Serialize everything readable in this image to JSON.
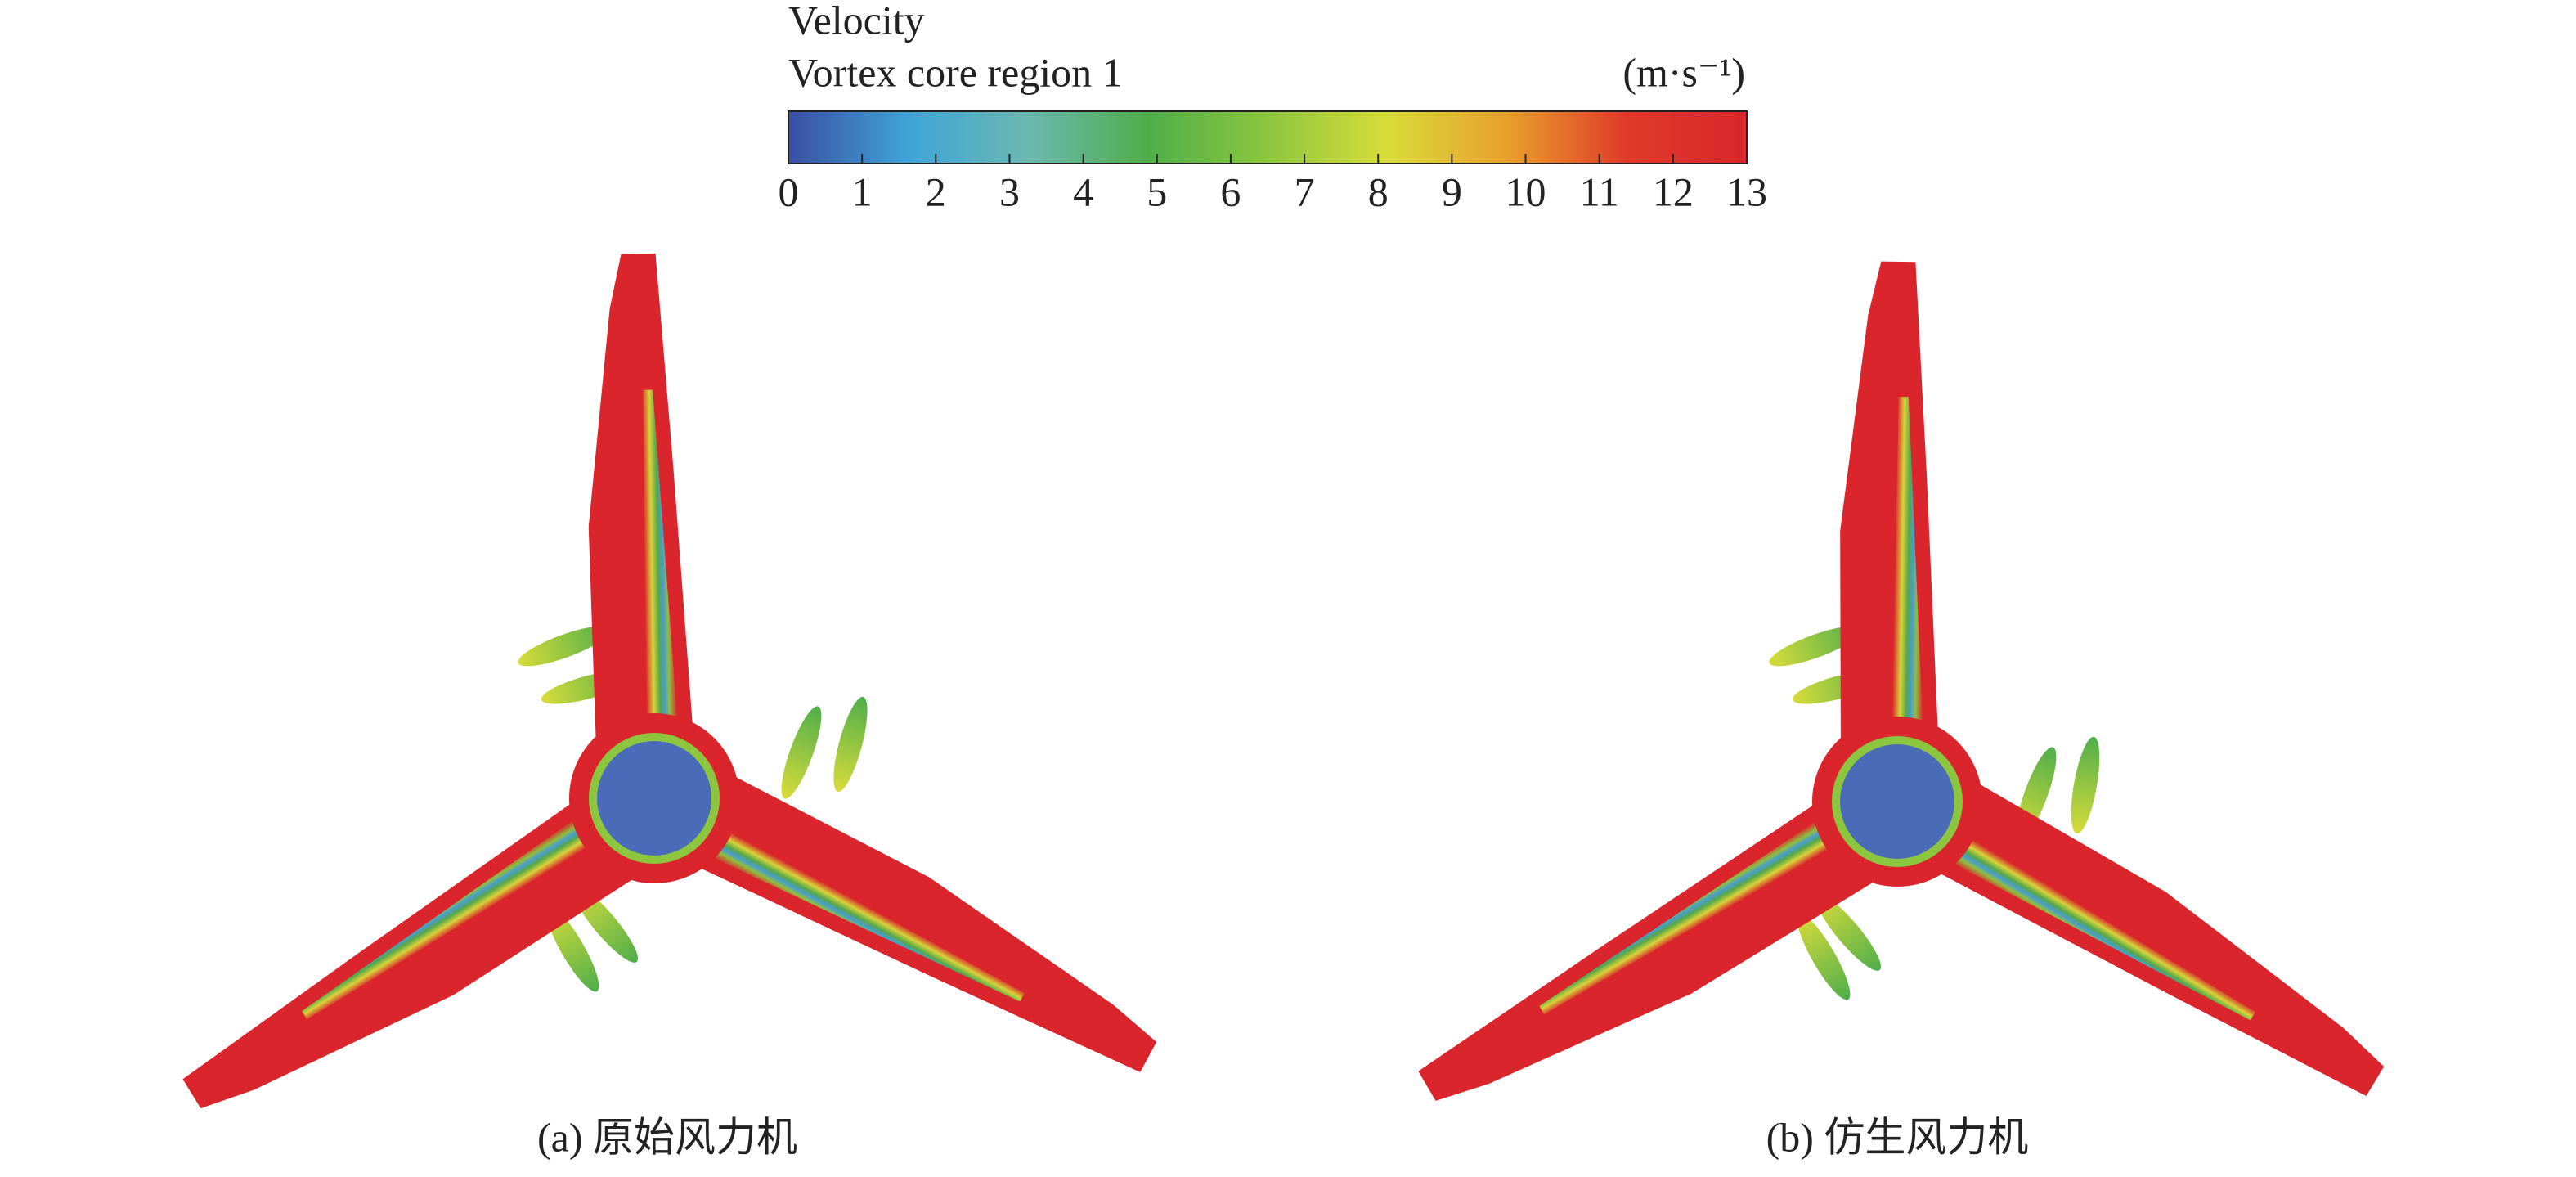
{
  "colorbar": {
    "title": "Velocity",
    "subtitle": "Vortex core region 1",
    "unit": "(m·s⁻¹)",
    "range": [
      0,
      13
    ],
    "ticks": [
      0,
      1,
      2,
      3,
      4,
      5,
      6,
      7,
      8,
      9,
      10,
      11,
      12,
      13
    ],
    "colors": [
      "#3b4ea3",
      "#3fa4d8",
      "#6ab8b0",
      "#4fae4a",
      "#8cc63f",
      "#d8dc3a",
      "#e8a02c",
      "#e03a2a",
      "#d9252b"
    ]
  },
  "panels": [
    {
      "caption": "(a) 原始风力机"
    },
    {
      "caption": "(b) 仿生风力机"
    }
  ]
}
